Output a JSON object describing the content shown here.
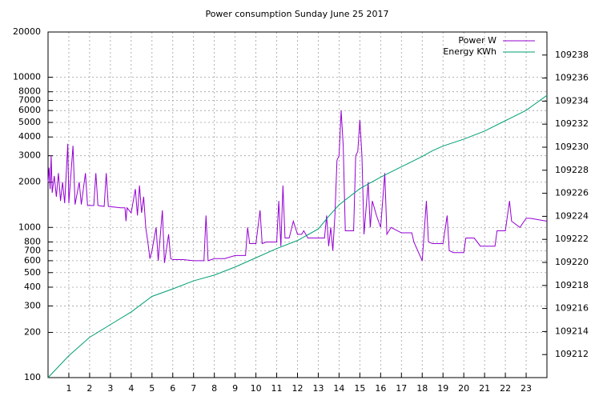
{
  "chart_data": {
    "type": "line",
    "title": "Power consumption Sunday June 25 2017",
    "xlim": [
      0,
      24
    ],
    "xticks": [
      1,
      2,
      3,
      4,
      5,
      6,
      7,
      8,
      9,
      10,
      11,
      12,
      13,
      14,
      15,
      16,
      17,
      18,
      19,
      20,
      21,
      22,
      23
    ],
    "ylim": [
      100,
      20000
    ],
    "log_y": true,
    "yticks": [
      100,
      200,
      300,
      400,
      500,
      600,
      700,
      800,
      1000,
      2000,
      3000,
      4000,
      5000,
      6000,
      7000,
      8000,
      10000,
      20000
    ],
    "y2lim": [
      109210,
      109240
    ],
    "y2ticks": [
      109212,
      109214,
      109216,
      109218,
      109220,
      109222,
      109224,
      109226,
      109228,
      109230,
      109232,
      109234,
      109236,
      109238
    ],
    "grid": true,
    "legend": "top-right",
    "series": [
      {
        "name": "Power W",
        "color": "#9400d3",
        "x": [
          0,
          0.05,
          0.1,
          0.15,
          0.2,
          0.3,
          0.4,
          0.5,
          0.6,
          0.7,
          0.8,
          0.95,
          1.0,
          1.2,
          1.3,
          1.5,
          1.6,
          1.8,
          1.9,
          2.2,
          2.3,
          2.4,
          2.7,
          2.8,
          2.9,
          3.5,
          3.7,
          3.75,
          3.8,
          4.0,
          4.2,
          4.3,
          4.4,
          4.5,
          4.6,
          4.7,
          4.8,
          4.9,
          5.0,
          5.2,
          5.3,
          5.5,
          5.6,
          5.8,
          5.9,
          6.0,
          6.5,
          7.0,
          7.5,
          7.6,
          7.7,
          8.0,
          8.5,
          9.0,
          9.5,
          9.6,
          9.7,
          10.0,
          10.2,
          10.3,
          10.5,
          11.0,
          11.1,
          11.2,
          11.3,
          11.4,
          11.6,
          11.8,
          12.0,
          12.2,
          12.3,
          12.5,
          13.0,
          13.3,
          13.4,
          13.5,
          13.6,
          13.7,
          13.8,
          13.9,
          14.0,
          14.1,
          14.2,
          14.3,
          14.7,
          14.8,
          14.9,
          15.0,
          15.1,
          15.2,
          15.4,
          15.5,
          15.6,
          15.8,
          16.0,
          16.2,
          16.3,
          16.5,
          17.0,
          17.5,
          17.6,
          18.0,
          18.2,
          18.3,
          18.5,
          19.0,
          19.2,
          19.3,
          19.5,
          20.0,
          20.1,
          20.5,
          20.8,
          21.5,
          21.6,
          22.0,
          22.2,
          22.3,
          22.7,
          23.0,
          23.2,
          24.0
        ],
        "values": [
          2000,
          2500,
          1800,
          3000,
          1700,
          2200,
          1600,
          2300,
          1500,
          2000,
          1450,
          3600,
          1450,
          3500,
          1420,
          2000,
          1420,
          2300,
          1400,
          1400,
          2300,
          1400,
          1380,
          2300,
          1380,
          1350,
          1350,
          1100,
          1350,
          1250,
          1800,
          1200,
          1900,
          1250,
          1600,
          1000,
          800,
          620,
          700,
          1000,
          600,
          1300,
          580,
          900,
          620,
          610,
          610,
          600,
          600,
          1200,
          600,
          620,
          620,
          650,
          650,
          1000,
          780,
          780,
          1300,
          780,
          800,
          800,
          1500,
          750,
          1900,
          850,
          850,
          1100,
          900,
          900,
          950,
          850,
          850,
          850,
          1200,
          750,
          1000,
          700,
          1200,
          2800,
          3000,
          6000,
          3500,
          950,
          950,
          3000,
          3200,
          5200,
          3000,
          900,
          2000,
          1000,
          1500,
          1200,
          1000,
          2300,
          900,
          1000,
          920,
          920,
          800,
          600,
          1500,
          800,
          780,
          780,
          1200,
          700,
          680,
          680,
          850,
          850,
          750,
          750,
          950,
          950,
          1500,
          1100,
          1000,
          1150,
          1150,
          1100
        ]
      },
      {
        "name": "Energy KWh",
        "color": "#009e73",
        "axis": "y2",
        "x": [
          0,
          1,
          2,
          3,
          4,
          5,
          6,
          7,
          8,
          9,
          10,
          11,
          12,
          13,
          13.5,
          14,
          15,
          16,
          17,
          18,
          18.5,
          19,
          20,
          21,
          22,
          23,
          24
        ],
        "values": [
          109210,
          109211.9,
          109213.5,
          109214.6,
          109215.7,
          109217.05,
          109217.7,
          109218.4,
          109218.9,
          109219.6,
          109220.4,
          109221.2,
          109221.9,
          109222.9,
          109224.0,
          109225.0,
          109226.4,
          109227.4,
          109228.3,
          109229.2,
          109229.7,
          109230.1,
          109230.7,
          109231.4,
          109232.3,
          109233.2,
          109234.5
        ]
      }
    ]
  }
}
